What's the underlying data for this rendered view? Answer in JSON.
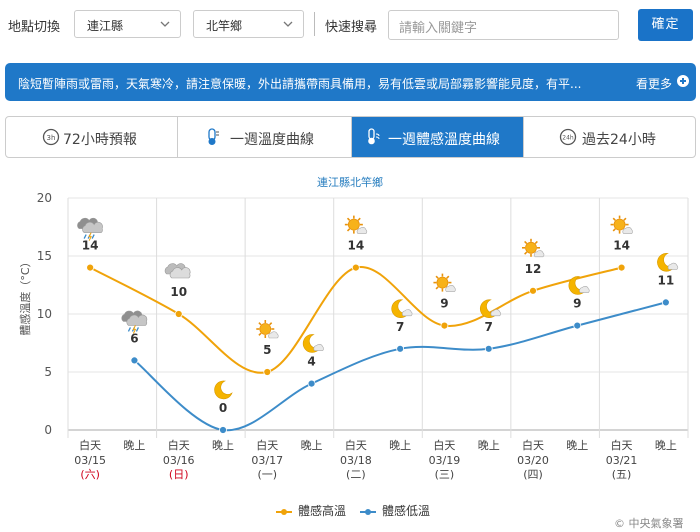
{
  "top": {
    "location_label": "地點切換",
    "county_select": "連江縣",
    "town_select": "北竿鄉",
    "search_label": "快速搜尋",
    "search_placeholder": "請輸入關鍵字",
    "confirm_label": "確定"
  },
  "banner": {
    "text": "陰短暫陣雨或雷雨，天氣寒冷，請注意保暖，外出請攜帶雨具備用，易有低雲或局部霧影響能見度，有平...",
    "more_label": "看更多"
  },
  "tabs": [
    {
      "label": "72小時預報",
      "icon": "clock-3h-icon",
      "active": false
    },
    {
      "label": "一週溫度曲線",
      "icon": "thermometer-icon",
      "active": false
    },
    {
      "label": "一週體感溫度曲線",
      "icon": "feels-like-icon",
      "active": true
    },
    {
      "label": "過去24小時",
      "icon": "clock-24h-icon",
      "active": false
    }
  ],
  "colors": {
    "accent": "#1f78c8",
    "high_series": "#f0a30a",
    "low_series": "#3d8cc9"
  },
  "chart_data": {
    "type": "line",
    "title": "連江縣北竿鄉",
    "ylabel": "體感溫度（°C）",
    "ylim": [
      0,
      20
    ],
    "yticks": [
      0,
      5,
      10,
      15,
      20
    ],
    "days": [
      {
        "date": "03/15",
        "weekday": "(六)",
        "weekend": true
      },
      {
        "date": "03/16",
        "weekday": "(日)",
        "weekend": true
      },
      {
        "date": "03/17",
        "weekday": "(一)",
        "weekend": false
      },
      {
        "date": "03/18",
        "weekday": "(二)",
        "weekend": false
      },
      {
        "date": "03/19",
        "weekday": "(三)",
        "weekend": false
      },
      {
        "date": "03/20",
        "weekday": "(四)",
        "weekend": false
      },
      {
        "date": "03/21",
        "weekday": "(五)",
        "weekend": false
      }
    ],
    "day_label": "白天",
    "night_label": "晚上",
    "series": [
      {
        "name": "體感高溫",
        "key": "high",
        "values": [
          14,
          10,
          5,
          14,
          9,
          12,
          14
        ],
        "icons": [
          "rain-cloud-icon",
          "cloud-icon",
          "sun-cloud-icon",
          "sun-cloud-icon",
          "sun-cloud-icon",
          "sun-cloud-icon",
          "sun-cloud-icon"
        ]
      },
      {
        "name": "體感低溫",
        "key": "low",
        "values": [
          6,
          0,
          4,
          7,
          7,
          9,
          11
        ],
        "icons": [
          "rain-cloud-icon",
          "moon-icon",
          "moon-cloud-icon",
          "moon-cloud-icon",
          "moon-cloud-icon",
          "moon-cloud-icon",
          "moon-cloud-icon"
        ]
      }
    ],
    "legend_position": "bottom",
    "grid": true
  },
  "credit": "© 中央氣象署"
}
